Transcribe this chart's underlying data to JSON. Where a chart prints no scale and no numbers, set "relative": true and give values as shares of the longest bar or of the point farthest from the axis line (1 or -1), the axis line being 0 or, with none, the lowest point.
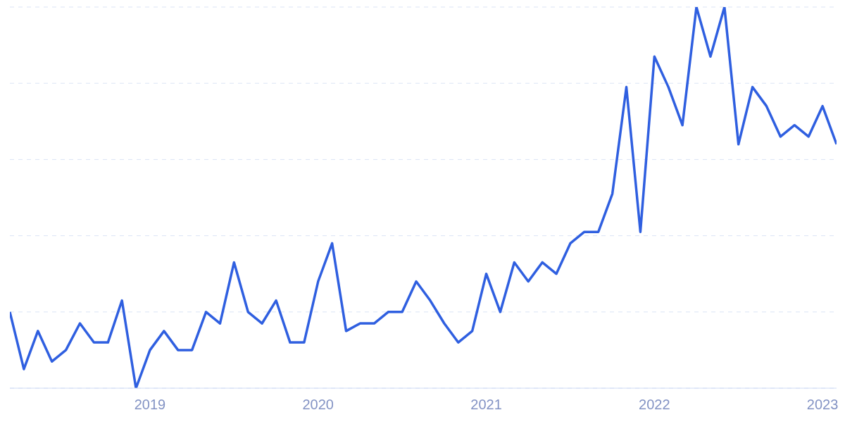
{
  "chart_data": {
    "type": "line",
    "relative": true,
    "grid": "y",
    "line_style": "solid",
    "marker": "none",
    "categories": [
      null,
      null,
      null,
      null,
      null,
      null,
      null,
      null,
      null,
      null,
      "2019",
      null,
      null,
      null,
      null,
      null,
      null,
      null,
      null,
      null,
      null,
      null,
      "2020",
      null,
      null,
      null,
      null,
      null,
      null,
      null,
      null,
      null,
      null,
      null,
      "2021",
      null,
      null,
      null,
      null,
      null,
      null,
      null,
      null,
      null,
      null,
      null,
      "2022",
      null,
      null,
      null,
      null,
      null,
      null,
      null,
      null,
      null,
      null,
      null,
      "2023",
      null
    ],
    "series": [
      {
        "color": "#2f5fe0",
        "values": [
          0.2,
          0.05,
          0.15,
          0.07,
          0.1,
          0.17,
          0.12,
          0.12,
          0.23,
          0,
          0.1,
          0.15,
          0.1,
          0.1,
          0.2,
          0.17,
          0.33,
          0.2,
          0.17,
          0.23,
          0.12,
          0.12,
          0.28,
          0.38,
          0.15,
          0.17,
          0.17,
          0.2,
          0.2,
          0.28,
          0.23,
          0.17,
          0.12,
          0.15,
          0.3,
          0.2,
          0.33,
          0.28,
          0.33,
          0.3,
          0.38,
          0.41,
          0.41,
          0.51,
          0.79,
          0.41,
          0.87,
          0.79,
          0.69,
          1,
          0.87,
          1,
          0.64,
          0.79,
          0.74,
          0.66,
          0.69,
          0.66,
          0.74,
          0.64
        ]
      }
    ]
  }
}
